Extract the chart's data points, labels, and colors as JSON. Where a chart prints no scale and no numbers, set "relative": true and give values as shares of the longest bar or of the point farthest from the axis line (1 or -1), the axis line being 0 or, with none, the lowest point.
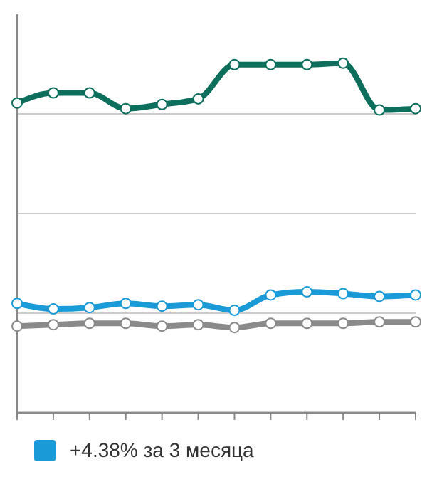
{
  "chart_data": {
    "type": "line",
    "relative": true,
    "categories": [
      null,
      null,
      null,
      null,
      null,
      null,
      null,
      null,
      null,
      null,
      null,
      null
    ],
    "series": [
      {
        "color": "#0e6e5c",
        "values": [
          0.886,
          0.915,
          0.915,
          0.87,
          0.882,
          0.898,
          0.996,
          0.996,
          0.996,
          1,
          0.866,
          0.87
        ]
      },
      {
        "name": "+4.38% за 3 месяца",
        "color": "#1a9ad6",
        "values": [
          0.313,
          0.297,
          0.301,
          0.313,
          0.305,
          0.309,
          0.293,
          0.337,
          0.346,
          0.341,
          0.333,
          0.337
        ]
      },
      {
        "color": "#8a8a8a",
        "values": [
          0.248,
          0.252,
          0.256,
          0.256,
          0.248,
          0.252,
          0.244,
          0.256,
          0.256,
          0.256,
          0.26,
          0.26
        ]
      }
    ],
    "grid": "y",
    "legend": "bottom",
    "marker": "circle",
    "line_style": "solid"
  }
}
